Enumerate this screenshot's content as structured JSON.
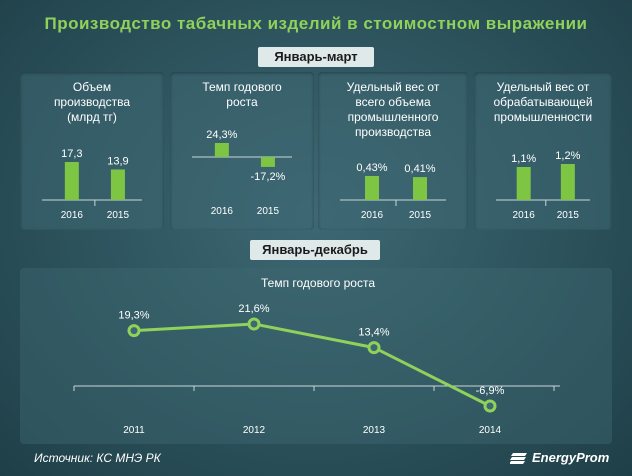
{
  "title": "Производство табачных изделий в стоимостном выражении",
  "section_q1": "Январь-март",
  "section_year": "Январь-декабрь",
  "colors": {
    "bar": "#7ec544",
    "line": "#8fd15a",
    "title": "#8fd15a"
  },
  "chart_data": [
    {
      "type": "bar",
      "title": "Объем производства (млрд тг)",
      "categories": [
        "2016",
        "2015"
      ],
      "values": [
        17.3,
        13.9
      ],
      "labels": [
        "17,3",
        "13,9"
      ]
    },
    {
      "type": "bar",
      "title": "Темп годового роста",
      "categories": [
        "2016",
        "2015"
      ],
      "values": [
        24.3,
        -17.2
      ],
      "labels": [
        "24,3%",
        "-17,2%"
      ]
    },
    {
      "type": "bar",
      "title": "Удельный вес от всего объема промышленного производства",
      "categories": [
        "2016",
        "2015"
      ],
      "values": [
        0.43,
        0.41
      ],
      "labels": [
        "0,43%",
        "0,41%"
      ]
    },
    {
      "type": "bar",
      "title": "Удельный вес от обрабатывающей промышленности",
      "categories": [
        "2016",
        "2015"
      ],
      "values": [
        1.1,
        1.2
      ],
      "labels": [
        "1,1%",
        "1,2%"
      ]
    },
    {
      "type": "line",
      "title": "Темп годового роста",
      "categories": [
        "2011",
        "2012",
        "2013",
        "2014"
      ],
      "values": [
        19.3,
        21.6,
        13.4,
        -6.9
      ],
      "labels": [
        "19,3%",
        "21,6%",
        "13,4%",
        "-6,9%"
      ]
    }
  ],
  "source": "Источник: КС МНЭ РК",
  "logo": "EnergyProm"
}
